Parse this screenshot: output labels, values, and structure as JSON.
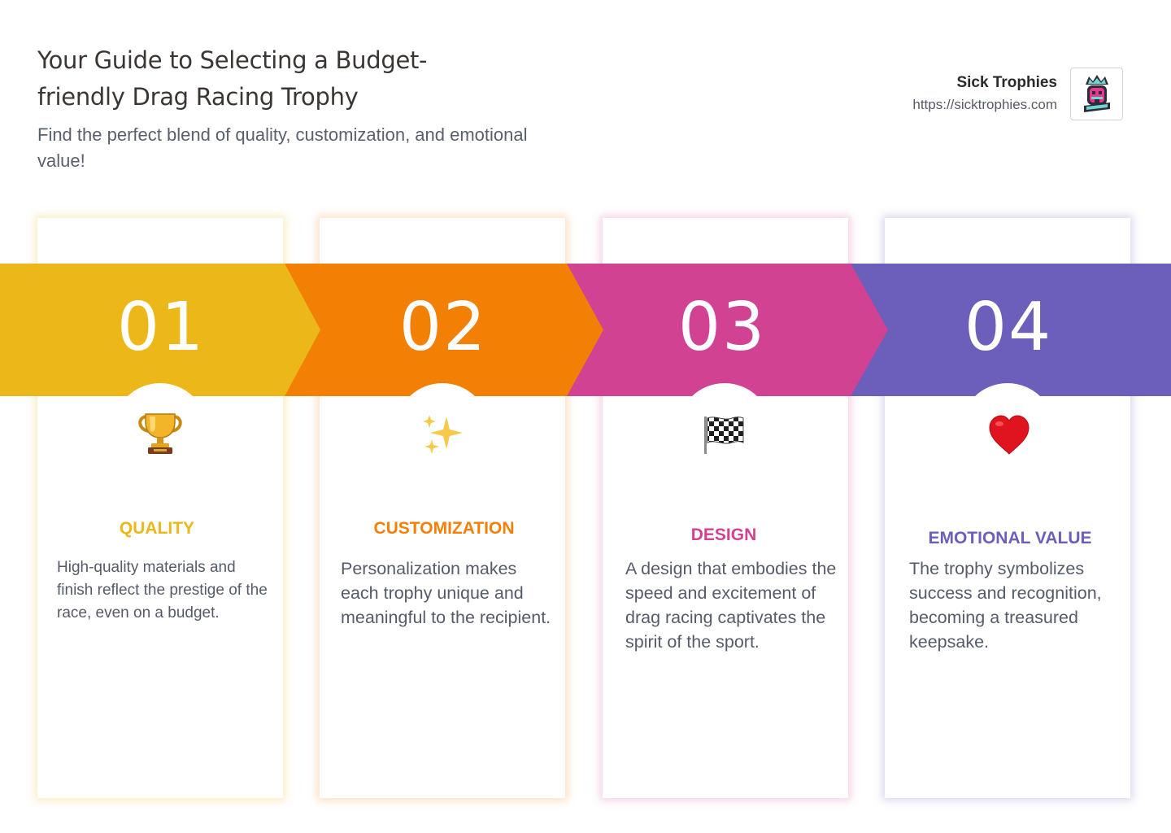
{
  "header": {
    "title": "Your Guide to Selecting a Budget-friendly Drag Racing Trophy",
    "subtitle": "Find the perfect blend of quality, customization, and emotional value!"
  },
  "brand": {
    "name": "Sick Trophies",
    "url": "https://sicktrophies.com",
    "logo_icon": "crowned-skull-logo"
  },
  "steps": [
    {
      "number": "01",
      "icon": "trophy-icon",
      "heading": "QUALITY",
      "text": "High-quality materials and finish reflect the prestige of the race, even on a budget.",
      "color": "#ecb819"
    },
    {
      "number": "02",
      "icon": "sparkles-icon",
      "heading": "CUSTOMIZATION",
      "text": "Personalization makes each trophy unique and meaningful to the recipient.",
      "color": "#f28005"
    },
    {
      "number": "03",
      "icon": "checkered-flag-icon",
      "heading": "DESIGN",
      "text": "A design that embodies the speed and excitement of drag racing captivates the spirit of the sport.",
      "color": "#d24292"
    },
    {
      "number": "04",
      "icon": "heart-icon",
      "heading": "EMOTIONAL VALUE",
      "text": "The trophy symbolizes success and recognition, becoming a treasured keepsake.",
      "color": "#6c5ebb"
    }
  ]
}
